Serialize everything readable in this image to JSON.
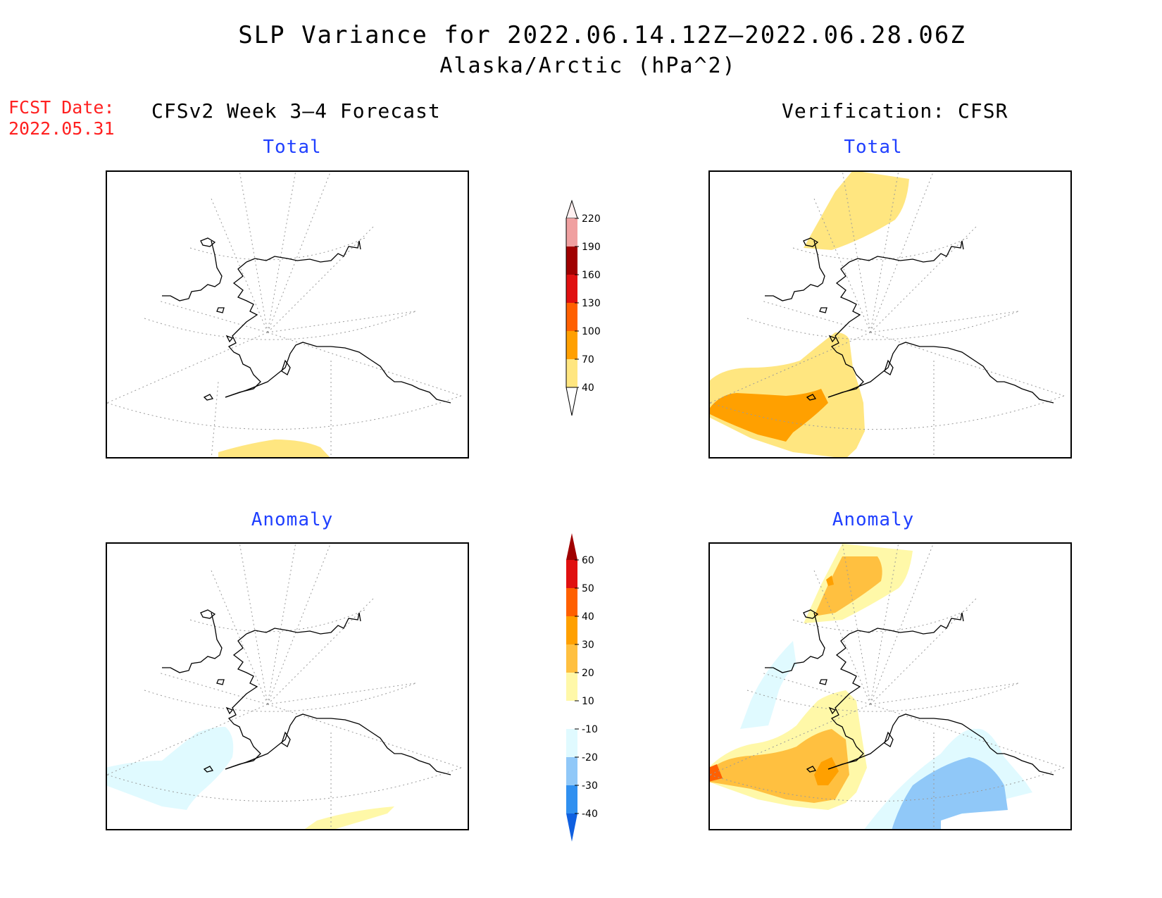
{
  "title": "SLP Variance for 2022.06.14.12Z—2022.06.28.06Z",
  "subtitle": "Alaska/Arctic (hPa^2)",
  "fcst_label": "FCST Date:",
  "fcst_date": "2022.05.31",
  "left_column_title": "CFSv2 Week 3—4 Forecast",
  "right_column_title": "Verification: CFSR",
  "panels": {
    "forecast_total": "Total",
    "forecast_anomaly": "Anomaly",
    "verification_total": "Total",
    "verification_anomaly": "Anomaly"
  },
  "total_colorbar": {
    "levels": [
      "40",
      "70",
      "100",
      "130",
      "160",
      "190",
      "220"
    ],
    "colors": [
      "#ffe680",
      "#ffa000",
      "#ff6000",
      "#e01010",
      "#a00000",
      "#f0a0a0",
      "#fff0f0"
    ]
  },
  "anomaly_colorbar": {
    "levels": [
      "-40",
      "-30",
      "-20",
      "-10",
      "10",
      "20",
      "30",
      "40",
      "50",
      "60"
    ],
    "colors": [
      "#1060e0",
      "#3090f0",
      "#90c8f8",
      "#e0faff",
      "#ffffff",
      "#fff8a8",
      "#ffc040",
      "#ffa000",
      "#ff6000",
      "#e01010",
      "#a00000"
    ]
  }
}
